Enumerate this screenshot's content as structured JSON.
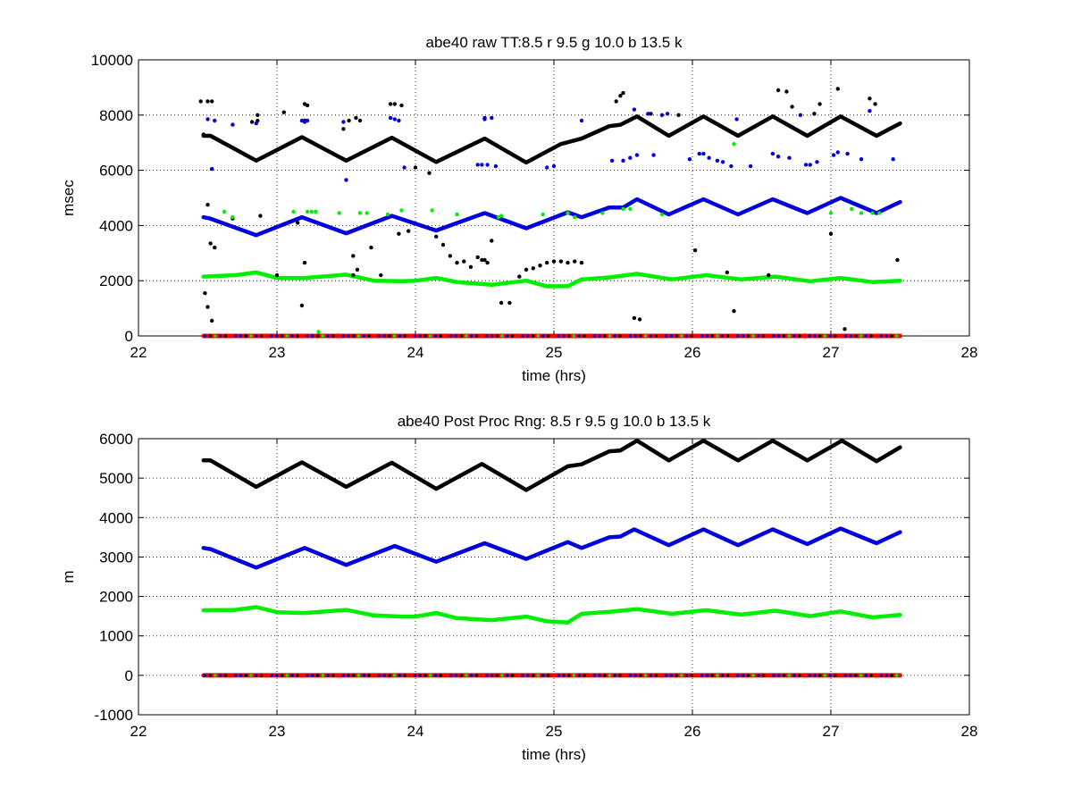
{
  "colors": {
    "red": "#ff0000",
    "green": "#00ee00",
    "blue": "#0000dd",
    "black": "#000000",
    "grid": "#000000"
  },
  "chart_data": [
    {
      "type": "scatter",
      "title": "abe40 raw TT:8.5 r  9.5 g  10.0 b  13.5  k",
      "xlabel": "time (hrs)",
      "ylabel": "msec",
      "xlim": [
        22,
        28
      ],
      "ylim": [
        0,
        10000
      ],
      "xticks": [
        "22",
        "23",
        "24",
        "25",
        "26",
        "27",
        "28"
      ],
      "yticks": [
        "0",
        "2000",
        "4000",
        "6000",
        "8000",
        "10000"
      ],
      "grid": true,
      "series": [
        {
          "color": "black",
          "style": "line",
          "x": [
            22.47,
            22.52,
            22.85,
            23.18,
            23.5,
            23.83,
            24.15,
            24.5,
            24.8,
            25.05,
            25.2,
            25.4,
            25.48,
            25.6,
            25.83,
            26.08,
            26.33,
            26.58,
            26.83,
            27.07,
            27.33,
            27.5
          ],
          "y": [
            7250,
            7250,
            6350,
            7200,
            6350,
            7180,
            6300,
            7150,
            6280,
            6950,
            7150,
            7600,
            7650,
            7950,
            7250,
            7950,
            7250,
            7950,
            7250,
            7950,
            7250,
            7700
          ]
        },
        {
          "color": "blue",
          "style": "line",
          "x": [
            22.47,
            22.52,
            22.85,
            23.18,
            23.5,
            23.83,
            24.15,
            24.5,
            24.8,
            25.1,
            25.2,
            25.4,
            25.5,
            25.6,
            25.83,
            26.08,
            26.33,
            26.58,
            26.83,
            27.07,
            27.33,
            27.5
          ],
          "y": [
            4300,
            4250,
            3650,
            4300,
            3720,
            4350,
            3820,
            4450,
            3900,
            4480,
            4300,
            4650,
            4650,
            4950,
            4400,
            4950,
            4400,
            4950,
            4450,
            5000,
            4450,
            4850
          ]
        },
        {
          "color": "green",
          "style": "line",
          "x": [
            22.47,
            22.7,
            22.85,
            23.0,
            23.2,
            23.5,
            23.7,
            23.9,
            24.0,
            24.15,
            24.3,
            24.55,
            24.8,
            24.95,
            25.1,
            25.2,
            25.4,
            25.6,
            25.85,
            26.1,
            26.35,
            26.6,
            26.85,
            27.07,
            27.3,
            27.5
          ],
          "y": [
            2150,
            2200,
            2300,
            2100,
            2100,
            2220,
            2000,
            1980,
            2000,
            2100,
            1950,
            1850,
            2000,
            1800,
            1800,
            2050,
            2120,
            2250,
            2050,
            2200,
            2050,
            2150,
            1980,
            2100,
            1950,
            2000
          ]
        },
        {
          "color": "red",
          "style": "line",
          "x": [
            22.47,
            27.5
          ],
          "y": [
            0,
            0
          ]
        },
        {
          "color": "black",
          "style": "dots",
          "x": [
            22.45,
            22.5,
            22.53,
            22.47,
            22.5,
            22.52,
            22.55,
            22.48,
            22.5,
            22.53,
            22.68,
            22.82,
            22.86,
            22.88,
            22.86,
            23.0,
            23.05,
            23.18,
            23.2,
            23.15,
            23.2,
            23.2,
            23.22,
            23.48,
            23.52,
            23.55,
            23.57,
            23.58,
            23.6,
            23.55,
            23.68,
            23.75,
            23.82,
            23.85,
            23.88,
            23.9,
            23.95,
            24.0,
            24.1,
            24.15,
            24.2,
            24.25,
            24.3,
            24.35,
            24.4,
            24.45,
            24.48,
            24.5,
            24.52,
            24.55,
            24.62,
            24.68,
            24.75,
            24.8,
            24.85,
            24.9,
            24.95,
            25.0,
            25.05,
            25.1,
            25.15,
            25.2,
            25.45,
            25.48,
            25.5,
            25.58,
            25.62,
            25.7,
            25.9,
            26.02,
            26.25,
            26.3,
            26.55,
            26.62,
            26.68,
            26.72,
            26.88,
            26.92,
            27.0,
            27.05,
            27.1,
            27.28,
            27.32,
            27.48
          ],
          "y": [
            8500,
            8500,
            8500,
            7300,
            4750,
            3350,
            3200,
            1550,
            1050,
            550,
            4250,
            7750,
            7800,
            4350,
            8000,
            2200,
            8100,
            1100,
            2650,
            4100,
            8400,
            7800,
            8350,
            7500,
            7800,
            2900,
            7900,
            2400,
            7800,
            2200,
            3200,
            2200,
            8400,
            8400,
            3700,
            8350,
            3800,
            6100,
            5900,
            3600,
            3300,
            2900,
            2650,
            2700,
            2500,
            2850,
            2750,
            2750,
            2650,
            3450,
            1200,
            1200,
            2150,
            2400,
            2450,
            2550,
            2650,
            2700,
            2700,
            2650,
            2700,
            2650,
            8500,
            8700,
            8800,
            650,
            600,
            8050,
            8000,
            3100,
            2300,
            900,
            2200,
            8900,
            8850,
            8300,
            8050,
            8400,
            3700,
            8950,
            250,
            8600,
            8400,
            2750
          ]
        },
        {
          "color": "blue",
          "style": "dots",
          "x": [
            22.5,
            22.53,
            22.55,
            22.68,
            22.85,
            23.18,
            23.2,
            23.22,
            23.48,
            23.5,
            23.82,
            23.85,
            23.88,
            23.92,
            24.45,
            24.48,
            24.5,
            24.52,
            24.5,
            24.55,
            24.58,
            24.95,
            25.0,
            25.2,
            25.42,
            25.5,
            25.55,
            25.58,
            25.6,
            25.68,
            25.72,
            25.78,
            25.82,
            25.98,
            26.05,
            26.08,
            26.12,
            26.18,
            26.22,
            26.28,
            26.32,
            26.42,
            26.58,
            26.62,
            26.7,
            26.78,
            26.82,
            26.85,
            26.9,
            27.02,
            27.05,
            27.12,
            27.22,
            27.28,
            27.45
          ],
          "y": [
            7850,
            6050,
            7800,
            7650,
            7700,
            7800,
            7750,
            7800,
            7750,
            5650,
            7900,
            7850,
            7800,
            6100,
            6200,
            6200,
            7900,
            6200,
            7850,
            7900,
            6150,
            6100,
            6150,
            7800,
            6350,
            6350,
            6450,
            8200,
            6550,
            8050,
            6550,
            8000,
            8050,
            6400,
            6600,
            6600,
            6450,
            6350,
            6300,
            6150,
            7850,
            6150,
            6600,
            6500,
            6450,
            8000,
            6200,
            6200,
            6300,
            6550,
            6650,
            6600,
            6400,
            8150,
            6400
          ]
        },
        {
          "color": "green",
          "style": "dots",
          "x": [
            22.62,
            22.68,
            23.12,
            23.22,
            23.25,
            23.28,
            23.3,
            23.45,
            23.6,
            23.65,
            23.8,
            23.9,
            24.12,
            24.3,
            24.6,
            24.62,
            24.92,
            25.1,
            25.15,
            25.35,
            25.5,
            25.55,
            25.78,
            26.3,
            27.0,
            27.15,
            27.22,
            27.3,
            27.35
          ],
          "y": [
            4500,
            4300,
            4500,
            4500,
            4500,
            4500,
            150,
            4450,
            4450,
            4450,
            4400,
            4550,
            4550,
            4400,
            4300,
            4350,
            4400,
            4450,
            4300,
            4450,
            4600,
            4600,
            4400,
            6950,
            4450,
            4600,
            4450,
            4450,
            4450
          ]
        }
      ]
    },
    {
      "type": "line",
      "title": "abe40 Post Proc Rng: 8.5 r  9.5 g  10.0 b  13.5  k",
      "xlabel": "time (hrs)",
      "ylabel": "m",
      "xlim": [
        22,
        28
      ],
      "ylim": [
        -1000,
        6000
      ],
      "xticks": [
        "22",
        "23",
        "24",
        "25",
        "26",
        "27",
        "28"
      ],
      "yticks": [
        "-1000",
        "0",
        "1000",
        "2000",
        "3000",
        "4000",
        "5000",
        "6000"
      ],
      "grid": true,
      "series": [
        {
          "color": "black",
          "style": "line",
          "x": [
            22.47,
            22.52,
            22.85,
            23.18,
            23.5,
            23.83,
            24.15,
            24.48,
            24.8,
            25.1,
            25.2,
            25.4,
            25.48,
            25.6,
            25.83,
            26.08,
            26.33,
            26.58,
            26.83,
            27.08,
            27.33,
            27.5
          ],
          "y": [
            5450,
            5450,
            4780,
            5400,
            4780,
            5390,
            4730,
            5360,
            4700,
            5300,
            5350,
            5680,
            5700,
            5950,
            5450,
            5950,
            5450,
            5950,
            5450,
            5950,
            5430,
            5780
          ]
        },
        {
          "color": "blue",
          "style": "line",
          "x": [
            22.47,
            22.52,
            22.85,
            23.2,
            23.5,
            23.85,
            24.15,
            24.5,
            24.8,
            25.1,
            25.2,
            25.4,
            25.48,
            25.58,
            25.83,
            26.08,
            26.33,
            26.58,
            26.83,
            27.07,
            27.33,
            27.5
          ],
          "y": [
            3230,
            3200,
            2730,
            3230,
            2800,
            3280,
            2880,
            3350,
            2950,
            3380,
            3230,
            3500,
            3520,
            3700,
            3300,
            3700,
            3300,
            3700,
            3330,
            3720,
            3350,
            3630
          ]
        },
        {
          "color": "green",
          "style": "line",
          "x": [
            22.47,
            22.7,
            22.85,
            23.0,
            23.2,
            23.5,
            23.7,
            23.9,
            24.0,
            24.15,
            24.3,
            24.55,
            24.8,
            24.95,
            25.1,
            25.2,
            25.4,
            25.6,
            25.85,
            26.1,
            26.35,
            26.6,
            26.85,
            27.07,
            27.3,
            27.5
          ],
          "y": [
            1650,
            1660,
            1730,
            1600,
            1580,
            1660,
            1520,
            1490,
            1490,
            1580,
            1450,
            1400,
            1490,
            1370,
            1340,
            1560,
            1610,
            1680,
            1560,
            1650,
            1540,
            1640,
            1500,
            1620,
            1470,
            1530
          ]
        },
        {
          "color": "red",
          "style": "line",
          "x": [
            22.47,
            27.5
          ],
          "y": [
            0,
            0
          ]
        }
      ]
    }
  ]
}
